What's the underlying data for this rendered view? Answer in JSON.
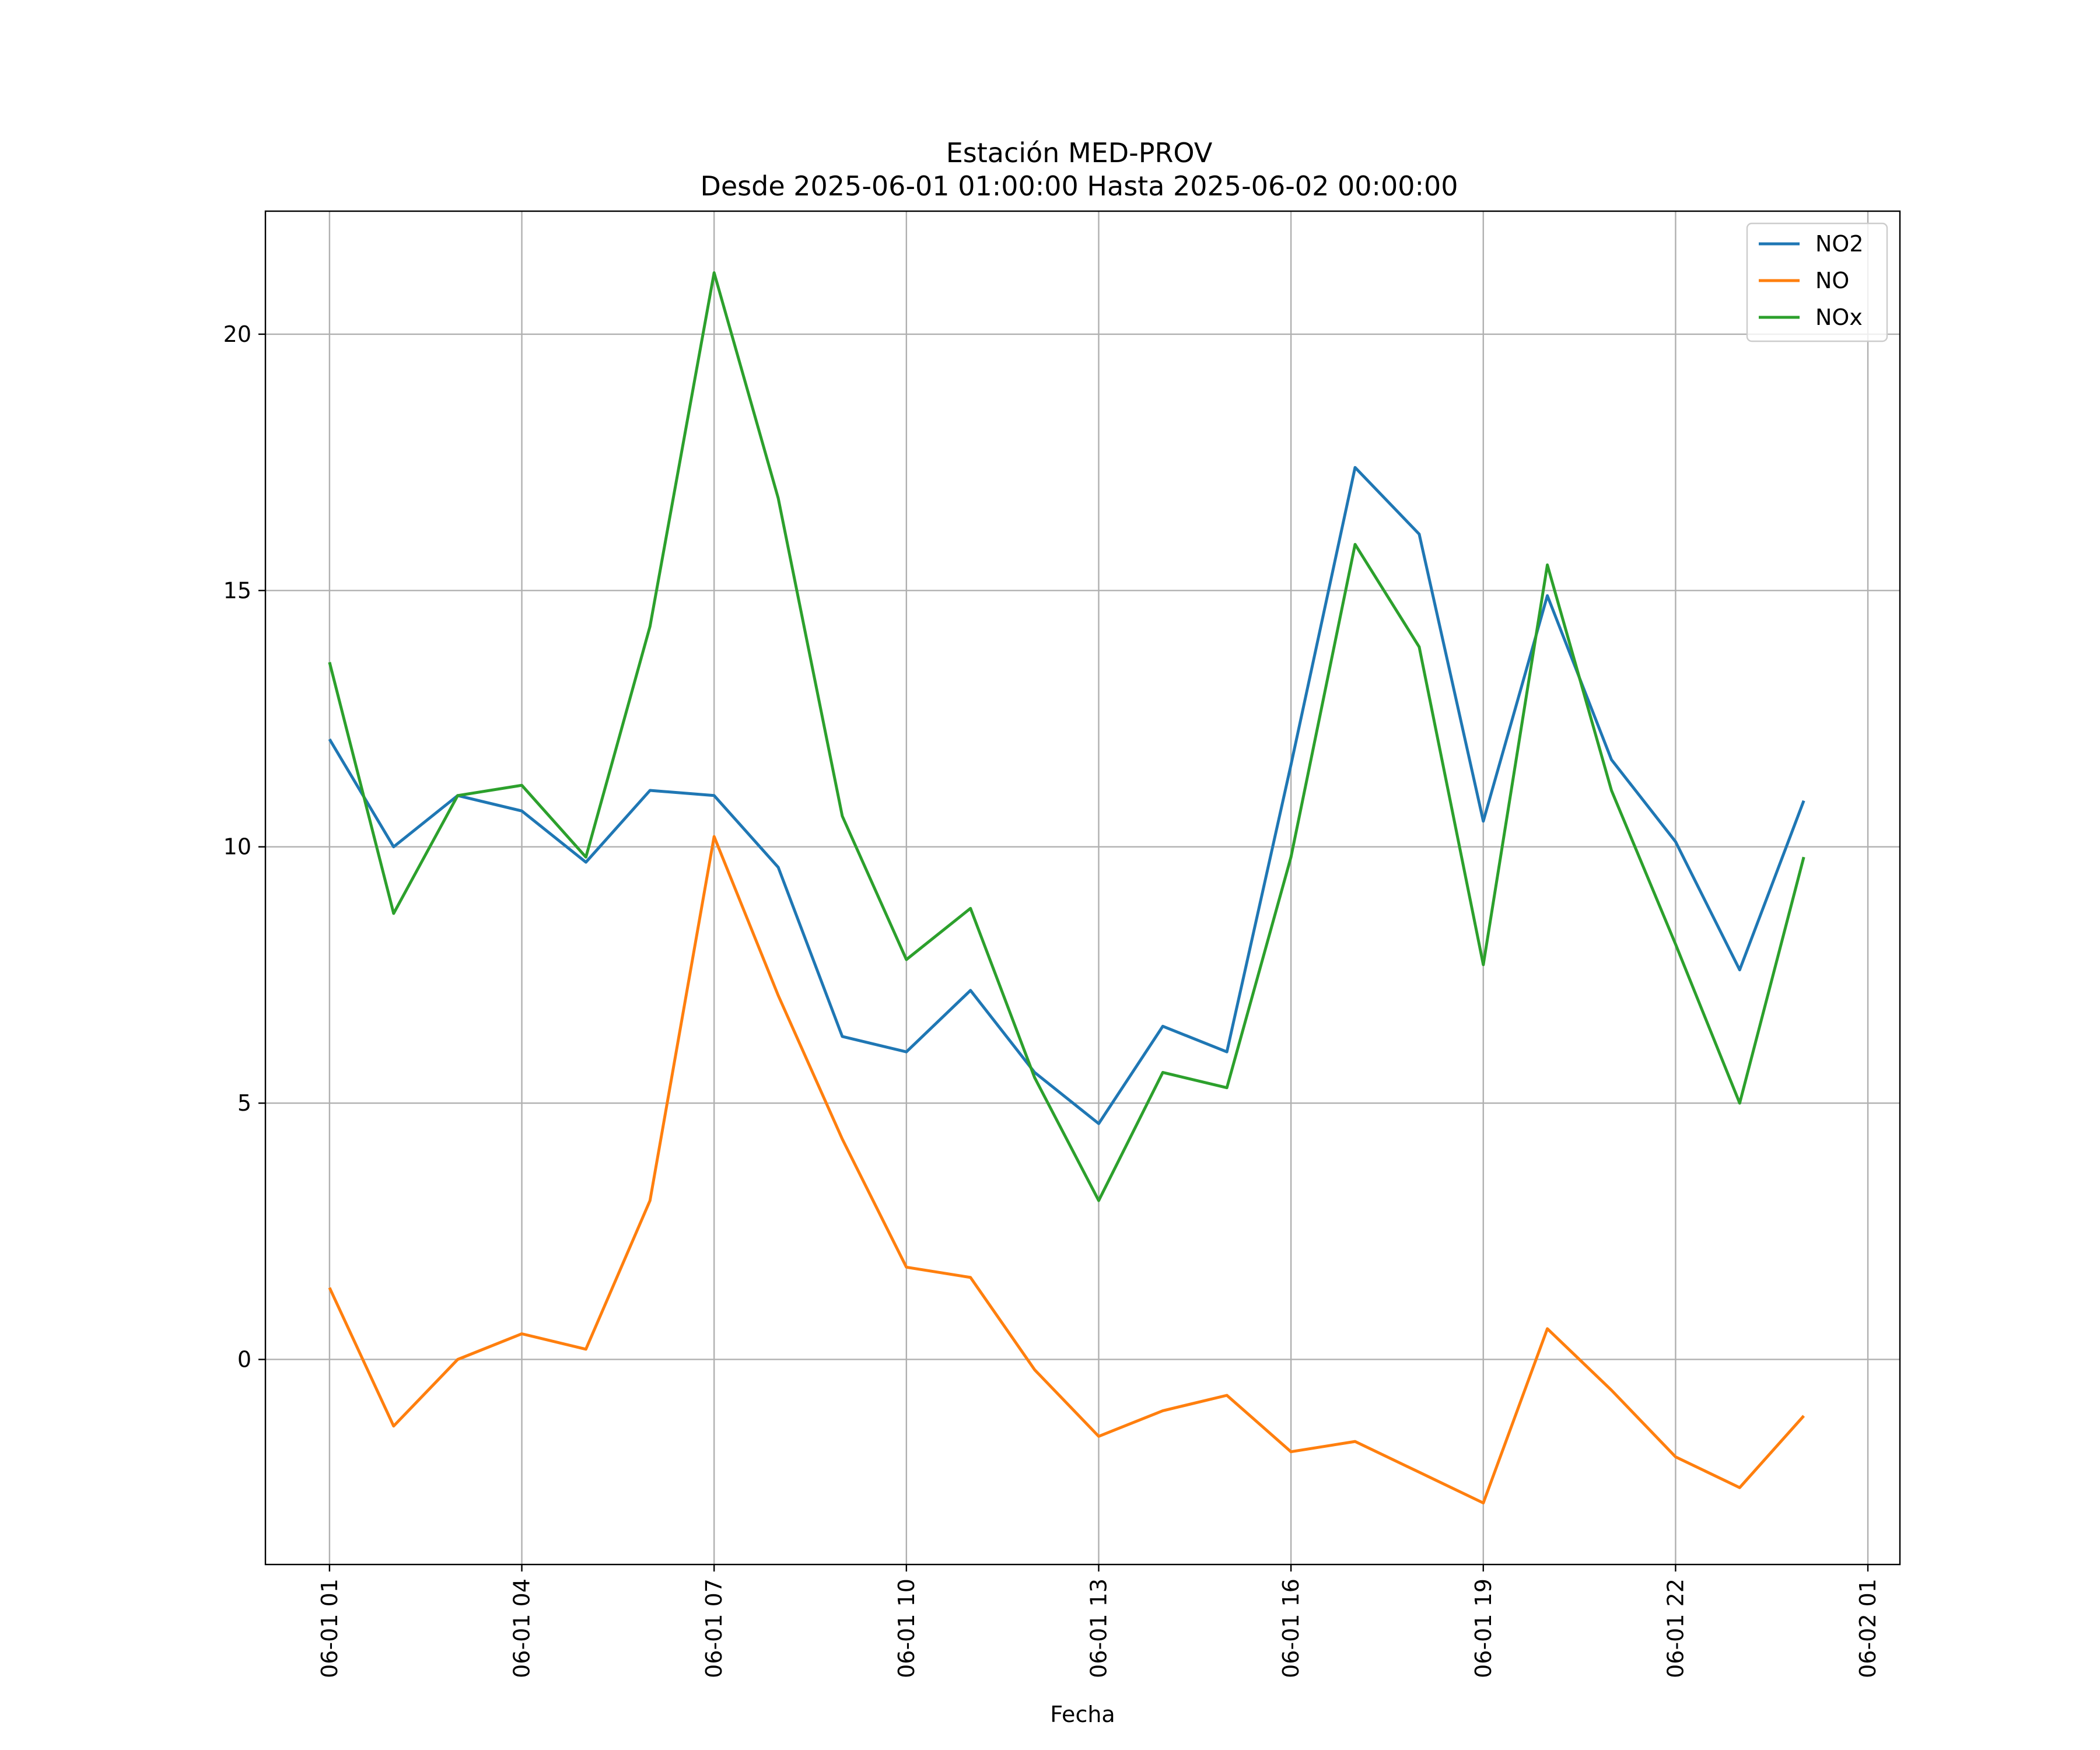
{
  "chart_data": {
    "type": "line",
    "title": "Estación MED-PROV",
    "subtitle": "Desde 2025-06-01 01:00:00 Hasta 2025-06-02 00:00:00",
    "xlabel": "Fecha",
    "ylabel": "",
    "x": [
      "2025-06-01 01:00",
      "2025-06-01 02:00",
      "2025-06-01 03:00",
      "2025-06-01 04:00",
      "2025-06-01 05:00",
      "2025-06-01 06:00",
      "2025-06-01 07:00",
      "2025-06-01 08:00",
      "2025-06-01 09:00",
      "2025-06-01 10:00",
      "2025-06-01 11:00",
      "2025-06-01 12:00",
      "2025-06-01 13:00",
      "2025-06-01 14:00",
      "2025-06-01 15:00",
      "2025-06-01 16:00",
      "2025-06-01 17:00",
      "2025-06-01 18:00",
      "2025-06-01 19:00",
      "2025-06-01 20:00",
      "2025-06-01 21:00",
      "2025-06-01 22:00",
      "2025-06-01 23:00",
      "2025-06-02 00:00"
    ],
    "xlim": [
      "2025-06-01 00:00",
      "2025-06-02 01:30"
    ],
    "x_ticks": [
      "2025-06-01 01:00",
      "2025-06-01 04:00",
      "2025-06-01 07:00",
      "2025-06-01 10:00",
      "2025-06-01 13:00",
      "2025-06-01 16:00",
      "2025-06-01 19:00",
      "2025-06-01 22:00",
      "2025-06-02 01:00"
    ],
    "x_tick_labels": [
      "06-01 01",
      "06-01 04",
      "06-01 07",
      "06-01 10",
      "06-01 13",
      "06-01 16",
      "06-01 19",
      "06-01 22",
      "06-02 01"
    ],
    "ylim": [
      -4.0,
      22.4
    ],
    "y_ticks": [
      0,
      5,
      10,
      15,
      20
    ],
    "y_tick_labels": [
      "0",
      "5",
      "10",
      "15",
      "20"
    ],
    "grid": true,
    "legend_position": "top-right",
    "series": [
      {
        "name": "NO2",
        "color": "#1f77b4",
        "values": [
          12.1,
          10.0,
          11.0,
          10.7,
          9.7,
          11.1,
          11.0,
          9.6,
          6.3,
          6.0,
          7.2,
          5.6,
          4.6,
          6.5,
          6.0,
          11.6,
          17.4,
          16.1,
          10.5,
          14.9,
          11.7,
          10.1,
          7.6,
          10.9
        ]
      },
      {
        "name": "NO",
        "color": "#ff7f0e",
        "values": [
          1.4,
          -1.3,
          0.0,
          0.5,
          0.2,
          3.1,
          10.2,
          7.1,
          4.3,
          1.8,
          1.6,
          -0.2,
          -1.5,
          -1.0,
          -0.7,
          -1.8,
          -1.6,
          -2.2,
          -2.8,
          0.6,
          -0.6,
          -1.9,
          -2.5,
          -1.1
        ]
      },
      {
        "name": "NOx",
        "color": "#2ca02c",
        "values": [
          13.6,
          8.7,
          11.0,
          11.2,
          9.8,
          14.3,
          21.2,
          16.8,
          10.6,
          7.8,
          8.8,
          5.5,
          3.1,
          5.6,
          5.3,
          9.8,
          15.9,
          13.9,
          7.7,
          15.5,
          11.1,
          8.1,
          5.0,
          9.8
        ]
      }
    ]
  }
}
